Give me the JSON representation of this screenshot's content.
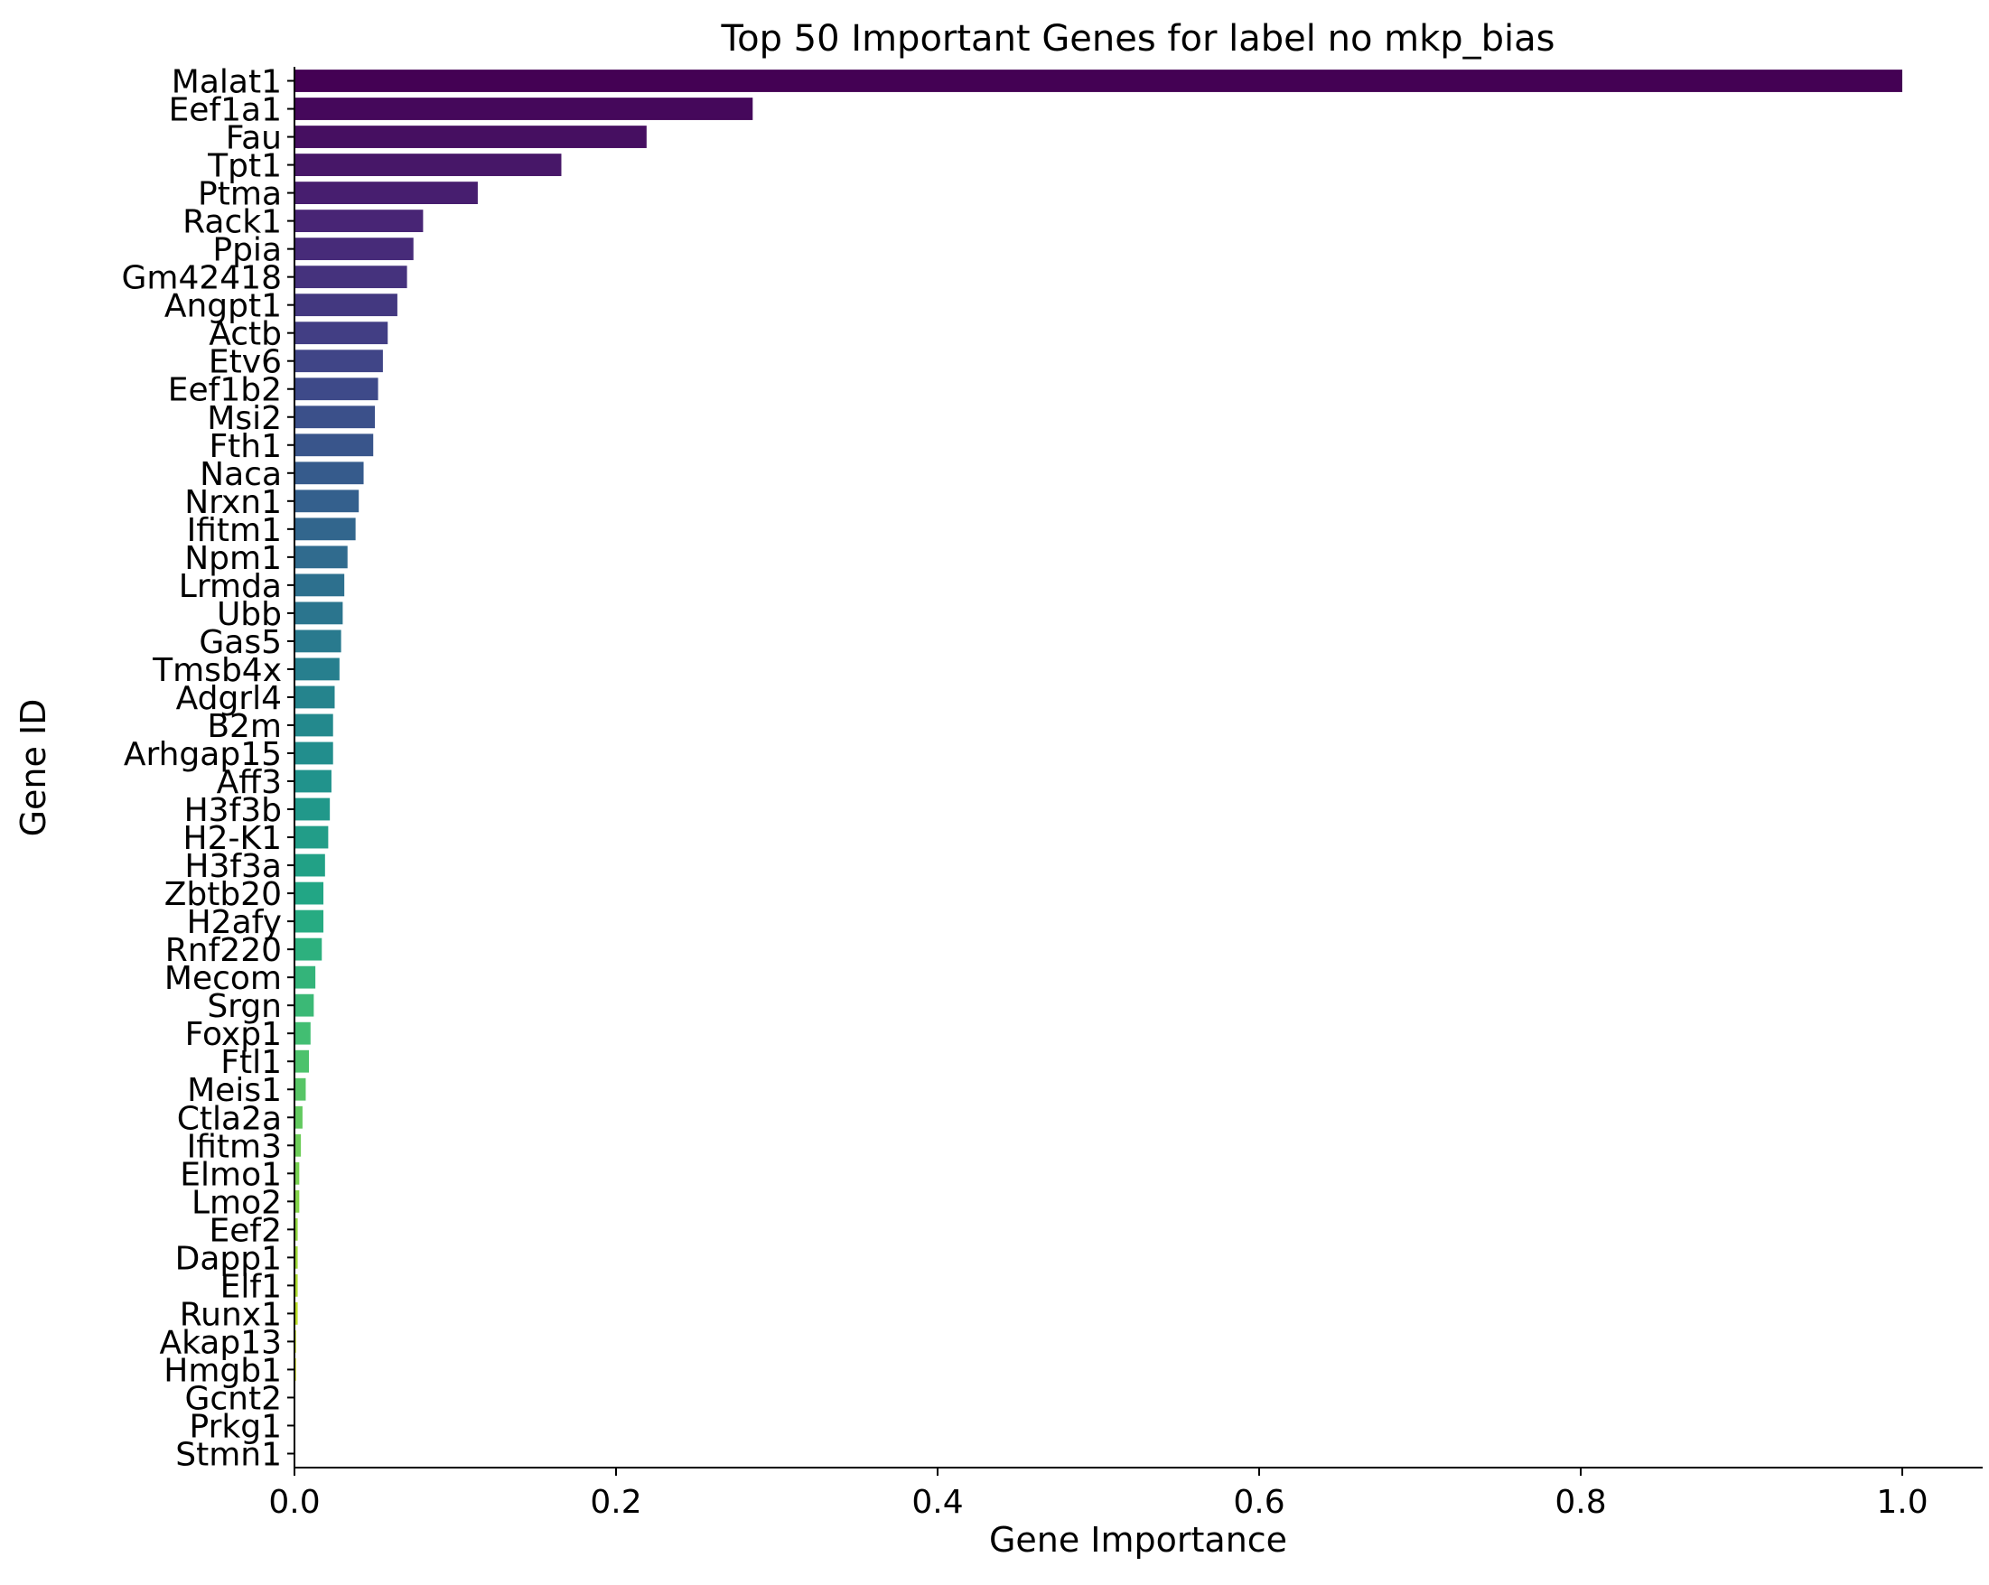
{
  "chart_data": {
    "type": "bar",
    "orientation": "horizontal",
    "title": "Top 50 Important Genes for label no mkp_bias",
    "xlabel": "Gene Importance",
    "ylabel": "Gene ID",
    "xlim": [
      0,
      1.05
    ],
    "xticks": [
      "0.0",
      "0.2",
      "0.4",
      "0.6",
      "0.8",
      "1.0"
    ],
    "xtick_values": [
      0,
      0.2,
      0.4,
      0.6,
      0.8,
      1.0
    ],
    "grid": false,
    "colormap": "viridis",
    "categories": [
      "Malat1",
      "Eef1a1",
      "Fau",
      "Tpt1",
      "Ptma",
      "Rack1",
      "Ppia",
      "Gm42418",
      "Angpt1",
      "Actb",
      "Etv6",
      "Eef1b2",
      "Msi2",
      "Fth1",
      "Naca",
      "Nrxn1",
      "Ifitm1",
      "Npm1",
      "Lrmda",
      "Ubb",
      "Gas5",
      "Tmsb4x",
      "Adgrl4",
      "B2m",
      "Arhgap15",
      "Aff3",
      "H3f3b",
      "H2-K1",
      "H3f3a",
      "Zbtb20",
      "H2afy",
      "Rnf220",
      "Mecom",
      "Srgn",
      "Foxp1",
      "Ftl1",
      "Meis1",
      "Ctla2a",
      "Ifitm3",
      "Elmo1",
      "Lmo2",
      "Eef2",
      "Dapp1",
      "Elf1",
      "Runx1",
      "Akap13",
      "Hmgb1",
      "Gcnt2",
      "Prkg1",
      "Stmn1"
    ],
    "values": [
      1.0,
      0.285,
      0.219,
      0.166,
      0.114,
      0.08,
      0.074,
      0.07,
      0.064,
      0.058,
      0.055,
      0.052,
      0.05,
      0.049,
      0.043,
      0.04,
      0.038,
      0.033,
      0.031,
      0.03,
      0.029,
      0.028,
      0.025,
      0.024,
      0.024,
      0.023,
      0.022,
      0.021,
      0.019,
      0.018,
      0.018,
      0.017,
      0.013,
      0.012,
      0.01,
      0.009,
      0.007,
      0.005,
      0.004,
      0.003,
      0.003,
      0.002,
      0.002,
      0.002,
      0.002,
      0.001,
      0.001,
      0.0005,
      0.0005,
      0.0005
    ]
  }
}
